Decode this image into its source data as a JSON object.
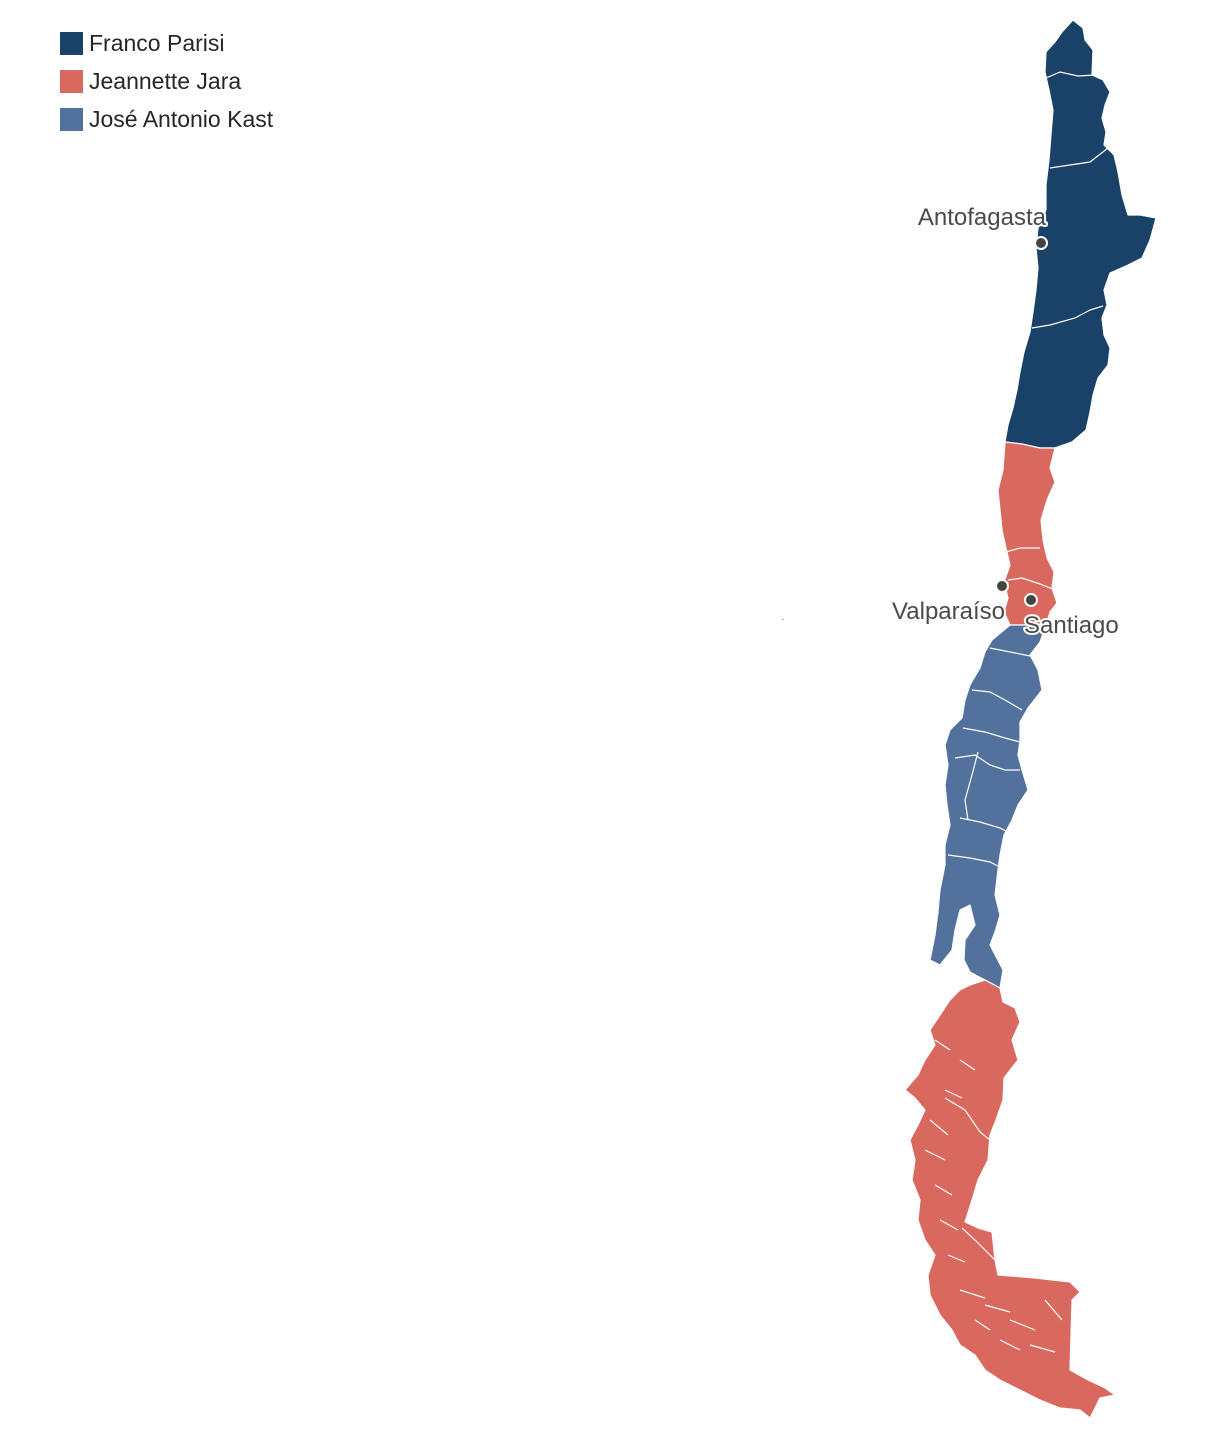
{
  "legend": {
    "items": [
      {
        "label": "Franco Parisi",
        "color": "#1a4167"
      },
      {
        "label": "Jeannette Jara",
        "color": "#d9695f"
      },
      {
        "label": "José Antonio Kast",
        "color": "#52729d"
      }
    ]
  },
  "map": {
    "region_winners": {
      "north": "Franco Parisi",
      "central": "Jeannette Jara",
      "south_central": "José Antonio Kast",
      "far_south": "Jeannette Jara"
    },
    "cities": [
      {
        "name": "Antofagasta"
      },
      {
        "name": "Valparaíso"
      },
      {
        "name": "Santiago"
      }
    ]
  }
}
